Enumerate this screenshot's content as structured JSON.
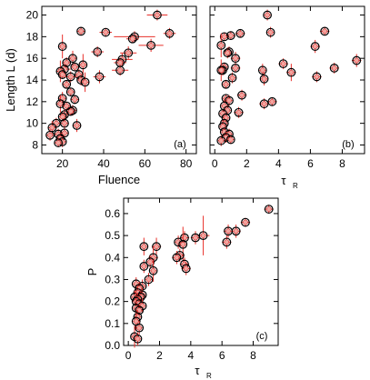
{
  "chart_data": [
    {
      "id": "a",
      "type": "scatter",
      "panel_label": "(a)",
      "xlabel": "Fluence",
      "ylabel": "Length L   (d)",
      "xlim": [
        10,
        85
      ],
      "ylim": [
        7.2,
        20.8
      ],
      "xticks": [
        20,
        40,
        60,
        80
      ],
      "yticks": [
        8,
        10,
        12,
        14,
        16,
        18,
        20
      ],
      "points": [
        {
          "x": 66,
          "y": 20.0,
          "ex": 5,
          "ey": 0.5
        },
        {
          "x": 72,
          "y": 18.3,
          "ex": 3,
          "ey": 0.5
        },
        {
          "x": 29,
          "y": 18.5,
          "ex": 2,
          "ey": 0.4
        },
        {
          "x": 41,
          "y": 18.4,
          "ex": 3,
          "ey": 0.4
        },
        {
          "x": 55,
          "y": 18.0,
          "ex": 10,
          "ey": 0.5
        },
        {
          "x": 54,
          "y": 17.8,
          "ex": 3,
          "ey": 0.4
        },
        {
          "x": 63,
          "y": 17.2,
          "ex": 6,
          "ey": 0.6
        },
        {
          "x": 20,
          "y": 17.1,
          "ex": 2,
          "ey": 1.1
        },
        {
          "x": 37,
          "y": 16.6,
          "ex": 3,
          "ey": 0.5
        },
        {
          "x": 52,
          "y": 16.5,
          "ex": 4,
          "ey": 0.6
        },
        {
          "x": 49,
          "y": 15.9,
          "ex": 5,
          "ey": 0.6
        },
        {
          "x": 48,
          "y": 15.6,
          "ex": 3,
          "ey": 0.4
        },
        {
          "x": 25,
          "y": 16.0,
          "ex": 2,
          "ey": 0.7
        },
        {
          "x": 22,
          "y": 15.6,
          "ex": 2,
          "ey": 0.5
        },
        {
          "x": 30,
          "y": 15.4,
          "ex": 2,
          "ey": 1.0
        },
        {
          "x": 26,
          "y": 15.2,
          "ex": 2,
          "ey": 0.4
        },
        {
          "x": 21,
          "y": 15.0,
          "ex": 3,
          "ey": 0.5
        },
        {
          "x": 19,
          "y": 14.8,
          "ex": 2,
          "ey": 1.0
        },
        {
          "x": 48,
          "y": 14.9,
          "ex": 4,
          "ey": 0.5
        },
        {
          "x": 28,
          "y": 14.5,
          "ex": 2,
          "ey": 0.5
        },
        {
          "x": 20,
          "y": 14.5,
          "ex": 2,
          "ey": 0.4
        },
        {
          "x": 24,
          "y": 14.3,
          "ex": 3,
          "ey": 0.5
        },
        {
          "x": 38,
          "y": 14.3,
          "ex": 3,
          "ey": 0.6
        },
        {
          "x": 29,
          "y": 14.0,
          "ex": 2,
          "ey": 0.5
        },
        {
          "x": 31,
          "y": 13.8,
          "ex": 2,
          "ey": 0.9
        },
        {
          "x": 22,
          "y": 13.6,
          "ex": 2,
          "ey": 0.4
        },
        {
          "x": 24,
          "y": 12.9,
          "ex": 2,
          "ey": 0.4
        },
        {
          "x": 20,
          "y": 12.3,
          "ex": 2,
          "ey": 0.6
        },
        {
          "x": 26,
          "y": 12.2,
          "ex": 2,
          "ey": 0.4
        },
        {
          "x": 19,
          "y": 11.8,
          "ex": 2,
          "ey": 0.8
        },
        {
          "x": 22,
          "y": 11.6,
          "ex": 2,
          "ey": 0.4
        },
        {
          "x": 25,
          "y": 11.2,
          "ex": 2,
          "ey": 0.5
        },
        {
          "x": 24,
          "y": 11.1,
          "ex": 2,
          "ey": 0.4
        },
        {
          "x": 21,
          "y": 10.8,
          "ex": 2,
          "ey": 0.5
        },
        {
          "x": 20,
          "y": 10.6,
          "ex": 2,
          "ey": 0.4
        },
        {
          "x": 21,
          "y": 10.0,
          "ex": 2,
          "ey": 0.5
        },
        {
          "x": 17,
          "y": 10.0,
          "ex": 2,
          "ey": 0.5
        },
        {
          "x": 27,
          "y": 9.8,
          "ex": 2,
          "ey": 0.6
        },
        {
          "x": 15,
          "y": 9.6,
          "ex": 2,
          "ey": 0.6
        },
        {
          "x": 18,
          "y": 9.0,
          "ex": 2,
          "ey": 0.5
        },
        {
          "x": 21,
          "y": 9.1,
          "ex": 2,
          "ey": 0.4
        },
        {
          "x": 19,
          "y": 8.6,
          "ex": 2,
          "ey": 0.5
        },
        {
          "x": 20,
          "y": 8.3,
          "ex": 2,
          "ey": 0.5
        },
        {
          "x": 14,
          "y": 8.9,
          "ex": 2,
          "ey": 0.5
        },
        {
          "x": 18,
          "y": 8.2,
          "ex": 2,
          "ey": 0.4
        }
      ]
    },
    {
      "id": "b",
      "type": "scatter",
      "panel_label": "(b)",
      "xlabel": "τ",
      "xlabel_sub": "R",
      "ylabel": "",
      "xlim": [
        -0.3,
        9.4
      ],
      "ylim": [
        7.2,
        20.8
      ],
      "xticks": [
        0,
        2,
        4,
        6,
        8
      ],
      "yticks": [
        8,
        10,
        12,
        14,
        16,
        18,
        20
      ],
      "points": [
        {
          "x": 3.3,
          "y": 20.0,
          "ex": 0.2,
          "ey": 0.5
        },
        {
          "x": 6.9,
          "y": 18.5,
          "ex": 0.3,
          "ey": 0.4
        },
        {
          "x": 1.6,
          "y": 18.3,
          "ex": 0.3,
          "ey": 0.4
        },
        {
          "x": 3.5,
          "y": 18.4,
          "ex": 0.2,
          "ey": 0.5
        },
        {
          "x": 1.0,
          "y": 18.1,
          "ex": 0.3,
          "ey": 0.4
        },
        {
          "x": 0.6,
          "y": 18.0,
          "ex": 0.2,
          "ey": 0.4
        },
        {
          "x": 0.4,
          "y": 17.2,
          "ex": 0.2,
          "ey": 1.1
        },
        {
          "x": 6.3,
          "y": 17.1,
          "ex": 0.3,
          "ey": 0.6
        },
        {
          "x": 0.9,
          "y": 16.6,
          "ex": 0.2,
          "ey": 0.5
        },
        {
          "x": 0.8,
          "y": 16.5,
          "ex": 0.2,
          "ey": 0.5
        },
        {
          "x": 1.3,
          "y": 16.0,
          "ex": 0.3,
          "ey": 0.6
        },
        {
          "x": 8.9,
          "y": 15.8,
          "ex": 0.3,
          "ey": 0.6
        },
        {
          "x": 4.3,
          "y": 15.5,
          "ex": 0.3,
          "ey": 0.5
        },
        {
          "x": 0.6,
          "y": 15.2,
          "ex": 0.2,
          "ey": 0.4
        },
        {
          "x": 7.5,
          "y": 15.1,
          "ex": 0.3,
          "ey": 0.5
        },
        {
          "x": 0.5,
          "y": 14.9,
          "ex": 0.2,
          "ey": 0.5
        },
        {
          "x": 1.3,
          "y": 15.1,
          "ex": 0.3,
          "ey": 0.4
        },
        {
          "x": 3.0,
          "y": 14.9,
          "ex": 0.2,
          "ey": 0.6
        },
        {
          "x": 4.8,
          "y": 14.7,
          "ex": 0.3,
          "ey": 0.8
        },
        {
          "x": 0.4,
          "y": 14.9,
          "ex": 0.2,
          "ey": 1.0
        },
        {
          "x": 6.4,
          "y": 14.3,
          "ex": 0.3,
          "ey": 0.5
        },
        {
          "x": 1.1,
          "y": 14.2,
          "ex": 0.2,
          "ey": 0.5
        },
        {
          "x": 3.1,
          "y": 14.1,
          "ex": 0.2,
          "ey": 0.6
        },
        {
          "x": 0.7,
          "y": 13.6,
          "ex": 0.2,
          "ey": 0.4
        },
        {
          "x": 1.7,
          "y": 12.6,
          "ex": 0.3,
          "ey": 0.5
        },
        {
          "x": 0.7,
          "y": 12.3,
          "ex": 0.2,
          "ey": 0.4
        },
        {
          "x": 3.6,
          "y": 12.0,
          "ex": 0.3,
          "ey": 0.4
        },
        {
          "x": 0.9,
          "y": 12.1,
          "ex": 0.2,
          "ey": 0.5
        },
        {
          "x": 3.1,
          "y": 11.8,
          "ex": 0.3,
          "ey": 0.5
        },
        {
          "x": 0.6,
          "y": 11.6,
          "ex": 0.2,
          "ey": 0.6
        },
        {
          "x": 0.8,
          "y": 11.2,
          "ex": 0.2,
          "ey": 0.4
        },
        {
          "x": 1.5,
          "y": 11.0,
          "ex": 0.3,
          "ey": 0.5
        },
        {
          "x": 0.5,
          "y": 10.9,
          "ex": 0.2,
          "ey": 0.4
        },
        {
          "x": 0.7,
          "y": 10.5,
          "ex": 0.2,
          "ey": 0.4
        },
        {
          "x": 0.6,
          "y": 10.0,
          "ex": 0.2,
          "ey": 0.5
        },
        {
          "x": 0.5,
          "y": 9.7,
          "ex": 0.2,
          "ey": 0.6
        },
        {
          "x": 0.6,
          "y": 9.2,
          "ex": 0.2,
          "ey": 0.4
        },
        {
          "x": 0.9,
          "y": 9.0,
          "ex": 0.2,
          "ey": 0.5
        },
        {
          "x": 0.7,
          "y": 8.7,
          "ex": 0.2,
          "ey": 0.5
        },
        {
          "x": 0.4,
          "y": 8.4,
          "ex": 0.2,
          "ey": 0.5
        },
        {
          "x": 1.0,
          "y": 8.5,
          "ex": 0.2,
          "ey": 0.4
        }
      ]
    },
    {
      "id": "c",
      "type": "scatter",
      "panel_label": "(c)",
      "xlabel": "τ",
      "xlabel_sub": "R",
      "ylabel": "P",
      "xlim": [
        -0.3,
        9.6
      ],
      "ylim": [
        0.0,
        0.67
      ],
      "xticks": [
        0,
        2,
        4,
        6,
        8
      ],
      "yticks": [
        0.0,
        0.1,
        0.2,
        0.3,
        0.4,
        0.5,
        0.6
      ],
      "ytick_labels": [
        "0.0",
        "0.1",
        "0.2",
        "0.3",
        "0.4",
        "0.5",
        "0.6"
      ],
      "points": [
        {
          "x": 9.0,
          "y": 0.62,
          "ex": 0.3,
          "ey": 0.02
        },
        {
          "x": 7.5,
          "y": 0.56,
          "ex": 0.3,
          "ey": 0.02
        },
        {
          "x": 6.9,
          "y": 0.52,
          "ex": 0.3,
          "ey": 0.03
        },
        {
          "x": 6.4,
          "y": 0.52,
          "ex": 0.3,
          "ey": 0.03
        },
        {
          "x": 6.3,
          "y": 0.47,
          "ex": 0.3,
          "ey": 0.03
        },
        {
          "x": 4.8,
          "y": 0.5,
          "ex": 0.4,
          "ey": 0.09
        },
        {
          "x": 4.3,
          "y": 0.49,
          "ex": 0.3,
          "ey": 0.03
        },
        {
          "x": 3.6,
          "y": 0.49,
          "ex": 0.3,
          "ey": 0.03
        },
        {
          "x": 3.2,
          "y": 0.47,
          "ex": 0.2,
          "ey": 0.03
        },
        {
          "x": 3.5,
          "y": 0.46,
          "ex": 0.2,
          "ey": 0.08
        },
        {
          "x": 3.3,
          "y": 0.41,
          "ex": 0.3,
          "ey": 0.03
        },
        {
          "x": 3.1,
          "y": 0.4,
          "ex": 0.3,
          "ey": 0.03
        },
        {
          "x": 3.6,
          "y": 0.37,
          "ex": 0.3,
          "ey": 0.03
        },
        {
          "x": 3.7,
          "y": 0.35,
          "ex": 0.3,
          "ey": 0.03
        },
        {
          "x": 1.8,
          "y": 0.45,
          "ex": 0.3,
          "ey": 0.04
        },
        {
          "x": 1.0,
          "y": 0.45,
          "ex": 0.2,
          "ey": 0.04
        },
        {
          "x": 1.6,
          "y": 0.4,
          "ex": 0.3,
          "ey": 0.05
        },
        {
          "x": 1.4,
          "y": 0.38,
          "ex": 0.2,
          "ey": 0.03
        },
        {
          "x": 1.0,
          "y": 0.36,
          "ex": 0.2,
          "ey": 0.03
        },
        {
          "x": 1.6,
          "y": 0.34,
          "ex": 0.2,
          "ey": 0.05
        },
        {
          "x": 1.3,
          "y": 0.3,
          "ex": 0.2,
          "ey": 0.03
        },
        {
          "x": 0.9,
          "y": 0.27,
          "ex": 0.2,
          "ey": 0.03
        },
        {
          "x": 0.5,
          "y": 0.28,
          "ex": 0.2,
          "ey": 0.03
        },
        {
          "x": 0.7,
          "y": 0.26,
          "ex": 0.2,
          "ey": 0.03
        },
        {
          "x": 0.6,
          "y": 0.24,
          "ex": 0.2,
          "ey": 0.03
        },
        {
          "x": 0.9,
          "y": 0.23,
          "ex": 0.2,
          "ey": 0.03
        },
        {
          "x": 0.4,
          "y": 0.22,
          "ex": 0.2,
          "ey": 0.03
        },
        {
          "x": 0.8,
          "y": 0.22,
          "ex": 0.2,
          "ey": 0.03
        },
        {
          "x": 0.6,
          "y": 0.21,
          "ex": 0.2,
          "ey": 0.03
        },
        {
          "x": 0.5,
          "y": 0.2,
          "ex": 0.2,
          "ey": 0.05
        },
        {
          "x": 0.7,
          "y": 0.19,
          "ex": 0.2,
          "ey": 0.03
        },
        {
          "x": 0.9,
          "y": 0.18,
          "ex": 0.2,
          "ey": 0.03
        },
        {
          "x": 0.5,
          "y": 0.17,
          "ex": 0.2,
          "ey": 0.04
        },
        {
          "x": 0.7,
          "y": 0.16,
          "ex": 0.2,
          "ey": 0.03
        },
        {
          "x": 0.6,
          "y": 0.13,
          "ex": 0.2,
          "ey": 0.03
        },
        {
          "x": 0.5,
          "y": 0.11,
          "ex": 0.2,
          "ey": 0.04
        },
        {
          "x": 0.7,
          "y": 0.08,
          "ex": 0.2,
          "ey": 0.03
        },
        {
          "x": 0.4,
          "y": 0.04,
          "ex": 0.2,
          "ey": 0.05
        },
        {
          "x": 0.6,
          "y": 0.03,
          "ex": 0.2,
          "ey": 0.03
        }
      ]
    }
  ],
  "colors": {
    "error_bar": "#e8302a",
    "marker_edge": "#000000",
    "marker_fill": "#f3a49e",
    "frame": "#000000"
  }
}
